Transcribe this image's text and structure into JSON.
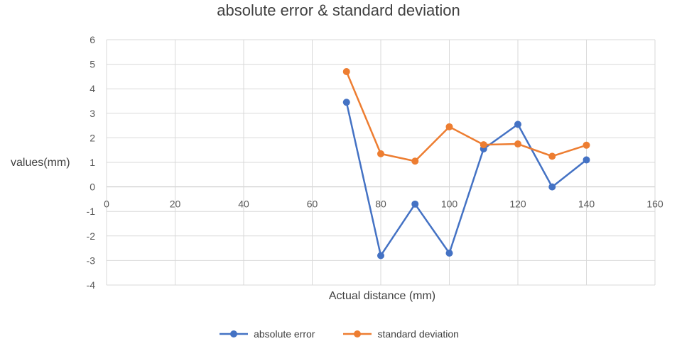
{
  "chart_data": {
    "type": "scatter",
    "title": "absolute error & standard deviation",
    "xlabel": "Actual distance (mm)",
    "ylabel": "values(mm)",
    "xlim": [
      0,
      160
    ],
    "ylim": [
      -4,
      6
    ],
    "xticks": [
      "0",
      "20",
      "40",
      "60",
      "80",
      "100",
      "120",
      "140",
      "160"
    ],
    "yticks": [
      "6",
      "5",
      "4",
      "3",
      "2",
      "1",
      "0",
      "-1",
      "-2",
      "-3",
      "-4"
    ],
    "grid": true,
    "legend": "bottom",
    "series": [
      {
        "name": "absolute error",
        "color": "#4472c4",
        "x": [
          70,
          80,
          90,
          100,
          110,
          120,
          130,
          140
        ],
        "y": [
          3.45,
          -2.8,
          -0.7,
          -2.7,
          1.55,
          2.55,
          0.0,
          1.1
        ]
      },
      {
        "name": "standard deviation",
        "color": "#ed7d31",
        "x": [
          70,
          80,
          90,
          100,
          110,
          120,
          130,
          140
        ],
        "y": [
          4.7,
          1.35,
          1.05,
          2.45,
          1.72,
          1.75,
          1.25,
          1.7
        ]
      }
    ]
  }
}
